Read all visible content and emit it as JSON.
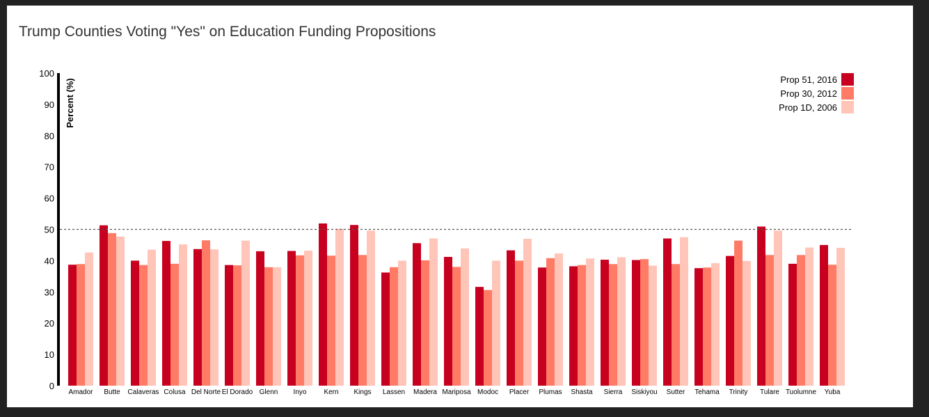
{
  "chart_data": {
    "type": "bar",
    "title": "Trump Counties Voting \"Yes\" on Education Funding Propositions",
    "ylabel": "Percent (%)",
    "xlabel": "",
    "ylim": [
      0,
      100
    ],
    "yticks": [
      0,
      10,
      20,
      30,
      40,
      50,
      60,
      70,
      80,
      90,
      100
    ],
    "reference_line": 50,
    "legend_position": "top-right",
    "categories": [
      "Amador",
      "Butte",
      "Calaveras",
      "Colusa",
      "Del Norte",
      "El Dorado",
      "Glenn",
      "Inyo",
      "Kern",
      "Kings",
      "Lassen",
      "Madera",
      "Mariposa",
      "Modoc",
      "Placer",
      "Plumas",
      "Shasta",
      "Sierra",
      "Siskiyou",
      "Sutter",
      "Tehama",
      "Trinity",
      "Tulare",
      "Tuolumne",
      "Yuba"
    ],
    "series": [
      {
        "name": "Prop 51, 2016",
        "color": "#c8001f",
        "values": [
          38.7,
          51.3,
          40.0,
          46.3,
          43.7,
          38.6,
          43.0,
          43.1,
          51.9,
          51.4,
          36.2,
          45.6,
          41.2,
          31.6,
          43.3,
          37.8,
          38.2,
          40.3,
          40.2,
          47.1,
          37.6,
          41.5,
          50.9,
          39.0,
          45.0
        ]
      },
      {
        "name": "Prop 30, 2012",
        "color": "#ff7b66",
        "values": [
          38.9,
          48.8,
          38.6,
          39.0,
          46.5,
          38.5,
          37.9,
          41.7,
          41.6,
          41.8,
          37.9,
          40.1,
          38.0,
          30.6,
          40.0,
          40.8,
          38.6,
          38.9,
          40.5,
          38.9,
          37.8,
          46.4,
          41.8,
          41.8,
          38.7
        ]
      },
      {
        "name": "Prop 1D, 2006",
        "color": "#ffc5b8",
        "values": [
          42.6,
          47.7,
          43.5,
          45.2,
          43.6,
          46.4,
          37.9,
          43.2,
          50.2,
          49.6,
          40.0,
          47.1,
          43.9,
          40.0,
          47.0,
          42.3,
          40.7,
          41.1,
          38.4,
          47.5,
          39.2,
          39.9,
          49.6,
          44.2,
          44.1
        ]
      }
    ]
  }
}
